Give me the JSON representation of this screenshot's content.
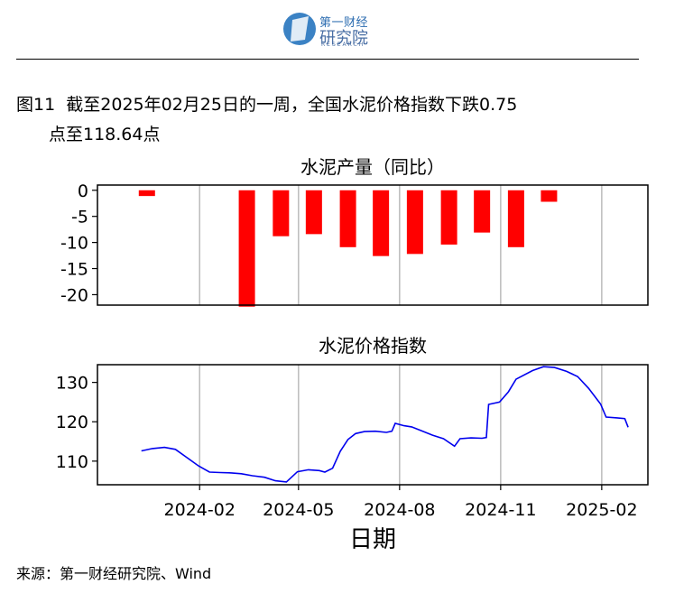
{
  "header": {
    "logo_top": "第一财经",
    "logo_main": "研究院",
    "logo_sub": "RESEARCH"
  },
  "figure": {
    "label": "图11",
    "title_line1": "截至2025年02月25日的一周，全国水泥价格指数下跌0.75",
    "title_line2": "点至118.64点"
  },
  "source": "来源：第一财经研究院、Wind",
  "colors": {
    "bars": "#ff0000",
    "line": "#0000ee",
    "grid": "#bbbbbb"
  },
  "chart_data": [
    {
      "type": "bar",
      "title": "水泥产量（同比）",
      "ylim": [
        -22,
        1
      ],
      "yticks": [
        0,
        -5,
        -10,
        -15,
        -20
      ],
      "ytick_labels": [
        "0",
        "-5",
        "-10",
        "-15",
        "-20"
      ],
      "x": [
        "2023-12",
        "2024-01",
        "2024-02",
        "2024-03",
        "2024-04",
        "2024-05",
        "2024-06",
        "2024-07",
        "2024-08",
        "2024-09",
        "2024-10",
        "2024-11",
        "2024-12",
        "2025-01"
      ],
      "values": [
        -1.1,
        null,
        null,
        -22.3,
        -8.8,
        -8.4,
        -10.9,
        -12.6,
        -12.2,
        -10.4,
        -8.1,
        -10.9,
        -2.2,
        null
      ],
      "grid": "vertical"
    },
    {
      "type": "line",
      "title": "水泥价格指数",
      "xlabel": "日期",
      "ylim": [
        104,
        134.5
      ],
      "yticks": [
        110,
        120,
        130
      ],
      "ytick_labels": [
        "110",
        "120",
        "130"
      ],
      "xtick_labels": [
        "2024-02",
        "2024-05",
        "2024-08",
        "2024-11",
        "2025-02"
      ],
      "series": [
        {
          "points": [
            [
              "2023-12-10",
              112.6
            ],
            [
              "2023-12-20",
              113.2
            ],
            [
              "2023-12-31",
              113.5
            ],
            [
              "2024-01-10",
              113.0
            ],
            [
              "2024-01-20",
              111.0
            ],
            [
              "2024-01-31",
              108.8
            ],
            [
              "2024-02-10",
              107.2
            ],
            [
              "2024-02-20",
              107.1
            ],
            [
              "2024-03-01",
              107.0
            ],
            [
              "2024-03-10",
              106.8
            ],
            [
              "2024-03-20",
              106.3
            ],
            [
              "2024-03-31",
              105.9
            ],
            [
              "2024-04-10",
              105.0
            ],
            [
              "2024-04-20",
              104.7
            ],
            [
              "2024-04-30",
              107.3
            ],
            [
              "2024-05-10",
              107.8
            ],
            [
              "2024-05-20",
              107.6
            ],
            [
              "2024-05-25",
              107.2
            ],
            [
              "2024-06-01",
              108.2
            ],
            [
              "2024-06-08",
              112.5
            ],
            [
              "2024-06-15",
              115.5
            ],
            [
              "2024-06-22",
              117.0
            ],
            [
              "2024-06-30",
              117.5
            ],
            [
              "2024-07-10",
              117.6
            ],
            [
              "2024-07-20",
              117.3
            ],
            [
              "2024-07-25",
              117.6
            ],
            [
              "2024-07-28",
              119.6
            ],
            [
              "2024-08-05",
              119.0
            ],
            [
              "2024-08-12",
              118.7
            ],
            [
              "2024-08-20",
              117.8
            ],
            [
              "2024-08-31",
              116.6
            ],
            [
              "2024-09-10",
              115.7
            ],
            [
              "2024-09-20",
              113.8
            ],
            [
              "2024-09-25",
              115.7
            ],
            [
              "2024-10-05",
              115.9
            ],
            [
              "2024-10-15",
              115.8
            ],
            [
              "2024-10-19",
              116.0
            ],
            [
              "2024-10-21",
              124.4
            ],
            [
              "2024-10-31",
              125.0
            ],
            [
              "2024-11-08",
              127.6
            ],
            [
              "2024-11-15",
              130.8
            ],
            [
              "2024-11-30",
              133.0
            ],
            [
              "2024-12-10",
              134.0
            ],
            [
              "2024-12-20",
              133.8
            ],
            [
              "2024-12-31",
              132.8
            ],
            [
              "2025-01-10",
              131.5
            ],
            [
              "2025-01-20",
              128.5
            ],
            [
              "2025-01-31",
              124.5
            ],
            [
              "2025-02-05",
              121.2
            ],
            [
              "2025-02-15",
              121.0
            ],
            [
              "2025-02-22",
              120.8
            ],
            [
              "2025-02-25",
              118.6
            ]
          ]
        }
      ],
      "grid": "vertical"
    }
  ]
}
